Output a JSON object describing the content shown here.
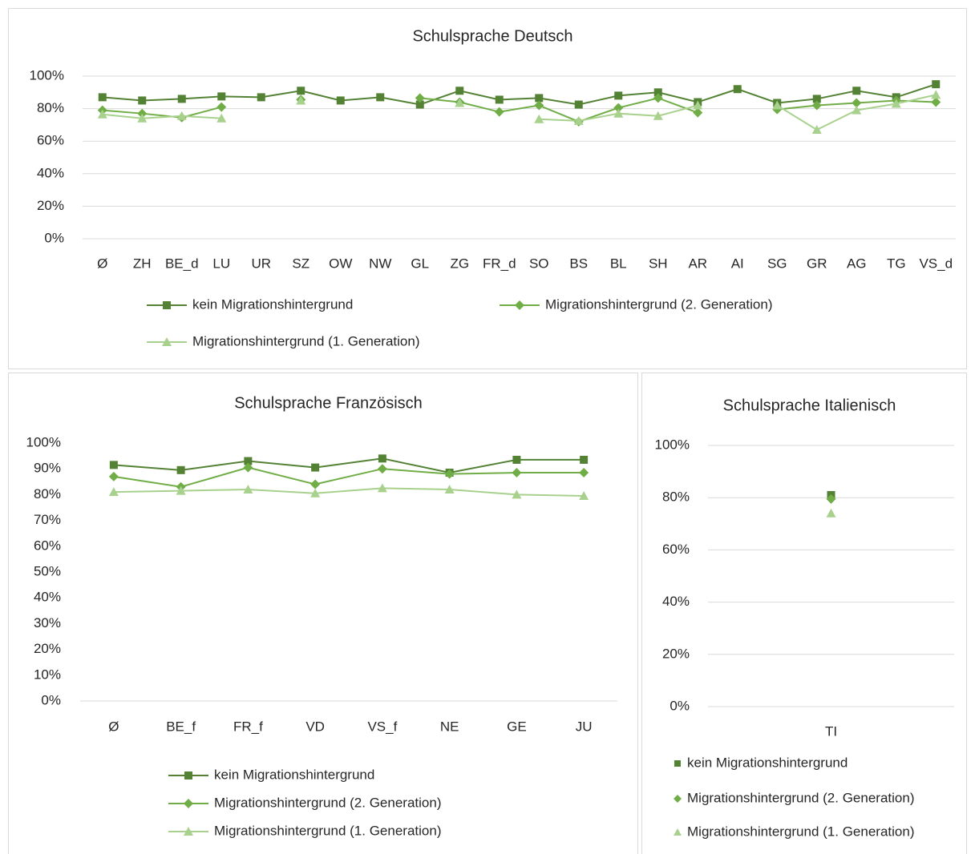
{
  "chart_data": [
    {
      "type": "line",
      "title": "Schulsprache Deutsch",
      "categories": [
        "Ø",
        "ZH",
        "BE_d",
        "LU",
        "UR",
        "SZ",
        "OW",
        "NW",
        "GL",
        "ZG",
        "FR_d",
        "SO",
        "BS",
        "BL",
        "SH",
        "AR",
        "AI",
        "SG",
        "GR",
        "AG",
        "TG",
        "VS_d"
      ],
      "ylim": [
        0,
        100
      ],
      "yticks": [
        {
          "value": 0,
          "label": "0%"
        },
        {
          "value": 20,
          "label": "20%"
        },
        {
          "value": 40,
          "label": "40%"
        },
        {
          "value": 60,
          "label": "60%"
        },
        {
          "value": 80,
          "label": "80%"
        },
        {
          "value": 100,
          "label": "100%"
        }
      ],
      "grid": true,
      "show_lines": true,
      "series": [
        {
          "name": "kein Migrationshintergrund",
          "color": "#548235",
          "marker": "square",
          "values": [
            87,
            85,
            86,
            87.5,
            87,
            91,
            85,
            87,
            82.5,
            91,
            85.5,
            86.5,
            82.5,
            88,
            90,
            84,
            92,
            83.5,
            86,
            91,
            87,
            95
          ]
        },
        {
          "name": "Migrationshintergrund (2. Generation)",
          "color": "#70ad47",
          "marker": "diamond",
          "values": [
            79,
            77,
            74.5,
            81,
            null,
            85.5,
            null,
            null,
            86.5,
            84,
            78,
            82,
            72,
            80.5,
            86.5,
            77.5,
            null,
            79.5,
            82,
            83.5,
            85,
            84
          ]
        },
        {
          "name": "Migrationshintergrund (1. Generation)",
          "color": "#a9d18e",
          "marker": "triangle",
          "values": [
            76.5,
            74,
            75.5,
            74,
            null,
            85,
            null,
            null,
            null,
            83.5,
            null,
            73.5,
            72.5,
            77,
            75.5,
            82,
            null,
            82,
            67,
            79,
            83,
            88.5
          ]
        }
      ]
    },
    {
      "type": "line",
      "title": "Schulsprache Französisch",
      "categories": [
        "Ø",
        "BE_f",
        "FR_f",
        "VD",
        "VS_f",
        "NE",
        "GE",
        "JU"
      ],
      "ylim": [
        0,
        100
      ],
      "yticks": [
        {
          "value": 0,
          "label": "0%"
        },
        {
          "value": 10,
          "label": "10%"
        },
        {
          "value": 20,
          "label": "20%"
        },
        {
          "value": 30,
          "label": "30%"
        },
        {
          "value": 40,
          "label": "40%"
        },
        {
          "value": 50,
          "label": "50%"
        },
        {
          "value": 60,
          "label": "60%"
        },
        {
          "value": 70,
          "label": "70%"
        },
        {
          "value": 80,
          "label": "80%"
        },
        {
          "value": 90,
          "label": "90%"
        },
        {
          "value": 100,
          "label": "100%"
        }
      ],
      "grid": false,
      "show_lines": true,
      "series": [
        {
          "name": "kein Migrationshintergrund",
          "color": "#548235",
          "marker": "square",
          "values": [
            91.5,
            89.5,
            93,
            90.5,
            94,
            88.5,
            93.5,
            93.5
          ]
        },
        {
          "name": "Migrationshintergrund (2. Generation)",
          "color": "#70ad47",
          "marker": "diamond",
          "values": [
            87,
            83,
            90.5,
            84,
            90,
            88,
            88.5,
            88.5
          ]
        },
        {
          "name": "Migrationshintergrund (1. Generation)",
          "color": "#a9d18e",
          "marker": "triangle",
          "values": [
            81,
            81.5,
            82,
            80.5,
            82.5,
            82,
            80,
            79.5
          ]
        }
      ]
    },
    {
      "type": "line",
      "title": "Schulsprache Italienisch",
      "categories": [
        "TI"
      ],
      "ylim": [
        0,
        100
      ],
      "yticks": [
        {
          "value": 0,
          "label": "0%"
        },
        {
          "value": 20,
          "label": "20%"
        },
        {
          "value": 40,
          "label": "40%"
        },
        {
          "value": 60,
          "label": "60%"
        },
        {
          "value": 80,
          "label": "80%"
        },
        {
          "value": 100,
          "label": "100%"
        }
      ],
      "grid": true,
      "show_lines": false,
      "series": [
        {
          "name": "kein Migrationshintergrund",
          "color": "#548235",
          "marker": "square",
          "values": [
            81
          ]
        },
        {
          "name": "Migrationshintergrund (2. Generation)",
          "color": "#70ad47",
          "marker": "diamond",
          "values": [
            79.5
          ]
        },
        {
          "name": "Migrationshintergrund (1. Generation)",
          "color": "#a9d18e",
          "marker": "triangle",
          "values": [
            74
          ]
        }
      ]
    }
  ]
}
